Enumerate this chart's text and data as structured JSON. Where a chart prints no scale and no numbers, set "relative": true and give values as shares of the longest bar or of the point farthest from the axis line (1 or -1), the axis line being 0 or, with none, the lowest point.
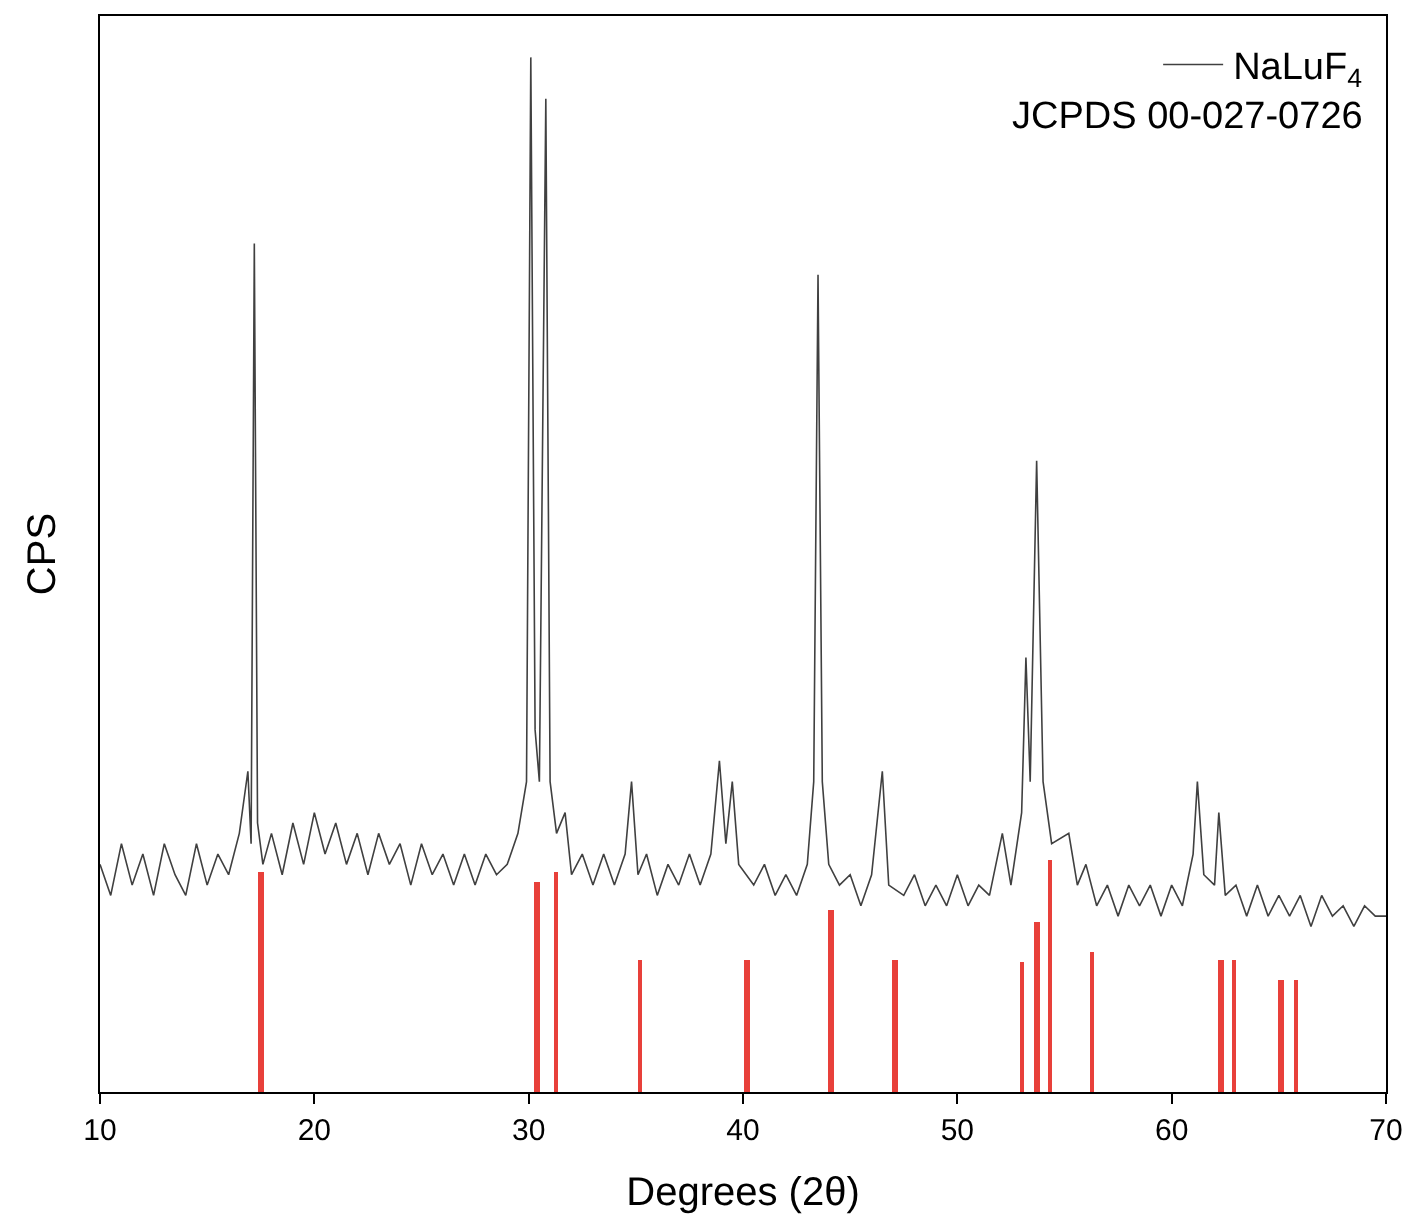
{
  "chart_data": {
    "type": "line",
    "relative": true,
    "xlabel": "Degrees (2θ)",
    "ylabel": "CPS",
    "xlim": [
      10,
      70
    ],
    "xticks": [
      10,
      20,
      30,
      40,
      50,
      60,
      70
    ],
    "legend": "top right",
    "annotations": [
      "JCPDS 00-027-0726"
    ],
    "series": [
      {
        "name": "NaLuF$_{4}$",
        "color": "#404040",
        "x": [
          10,
          10.5,
          11,
          11.5,
          12,
          12.5,
          13,
          13.5,
          14,
          14.5,
          15,
          15.5,
          16,
          16.5,
          16.9,
          17.05,
          17.2,
          17.35,
          17.6,
          18,
          18.5,
          19,
          19.5,
          20,
          20.5,
          21,
          21.5,
          22,
          22.5,
          23,
          23.5,
          24,
          24.5,
          25,
          25.5,
          26,
          26.5,
          27,
          27.5,
          28,
          28.5,
          29,
          29.5,
          29.9,
          30.1,
          30.3,
          30.5,
          30.8,
          31.0,
          31.3,
          31.7,
          32,
          32.5,
          33,
          33.5,
          34,
          34.5,
          34.8,
          35.1,
          35.5,
          36,
          36.5,
          37,
          37.5,
          38,
          38.5,
          38.9,
          39.2,
          39.5,
          39.8,
          40.5,
          41,
          41.5,
          42,
          42.5,
          43,
          43.3,
          43.5,
          43.7,
          44,
          44.5,
          45,
          45.5,
          46,
          46.5,
          46.8,
          47.5,
          48,
          48.5,
          49,
          49.5,
          50,
          50.5,
          51,
          51.5,
          52.1,
          52.5,
          53,
          53.2,
          53.4,
          53.7,
          54,
          54.4,
          55.2,
          55.6,
          56,
          56.5,
          57,
          57.5,
          58,
          58.5,
          59,
          59.5,
          60,
          60.5,
          61,
          61.2,
          61.5,
          62,
          62.2,
          62.5,
          63,
          63.5,
          64,
          64.5,
          65,
          65.5,
          66,
          66.5,
          67,
          67.5,
          68,
          68.5,
          69,
          69.5,
          70
        ],
        "values": [
          0.22,
          0.19,
          0.24,
          0.2,
          0.23,
          0.19,
          0.24,
          0.21,
          0.19,
          0.24,
          0.2,
          0.23,
          0.21,
          0.25,
          0.31,
          0.24,
          0.82,
          0.26,
          0.22,
          0.25,
          0.21,
          0.26,
          0.22,
          0.27,
          0.23,
          0.26,
          0.22,
          0.25,
          0.21,
          0.25,
          0.22,
          0.24,
          0.2,
          0.24,
          0.21,
          0.23,
          0.2,
          0.23,
          0.2,
          0.23,
          0.21,
          0.22,
          0.25,
          0.3,
          1.0,
          0.35,
          0.3,
          0.96,
          0.3,
          0.25,
          0.27,
          0.21,
          0.23,
          0.2,
          0.23,
          0.2,
          0.23,
          0.3,
          0.21,
          0.23,
          0.19,
          0.22,
          0.2,
          0.23,
          0.2,
          0.23,
          0.32,
          0.24,
          0.3,
          0.22,
          0.2,
          0.22,
          0.19,
          0.21,
          0.19,
          0.22,
          0.3,
          0.79,
          0.3,
          0.22,
          0.2,
          0.21,
          0.18,
          0.21,
          0.31,
          0.2,
          0.19,
          0.21,
          0.18,
          0.2,
          0.18,
          0.21,
          0.18,
          0.2,
          0.19,
          0.25,
          0.2,
          0.27,
          0.42,
          0.3,
          0.61,
          0.3,
          0.24,
          0.25,
          0.2,
          0.22,
          0.18,
          0.2,
          0.17,
          0.2,
          0.18,
          0.2,
          0.17,
          0.2,
          0.18,
          0.23,
          0.3,
          0.21,
          0.2,
          0.27,
          0.19,
          0.2,
          0.17,
          0.2,
          0.17,
          0.19,
          0.17,
          0.19,
          0.16,
          0.19,
          0.17,
          0.18,
          0.16,
          0.18,
          0.17,
          0.17
        ]
      },
      {
        "type": "bar",
        "color": "#e8403a",
        "x": [
          17.5,
          30.4,
          31.3,
          35.2,
          40.2,
          44.1,
          47.1,
          53.0,
          53.7,
          54.3,
          56.3,
          62.3,
          62.9,
          65.1,
          65.8
        ],
        "values": [
          0.213,
          0.203,
          0.213,
          0.128,
          0.128,
          0.175,
          0.128,
          0.126,
          0.164,
          0.224,
          0.136,
          0.128,
          0.128,
          0.109,
          0.109
        ]
      }
    ]
  }
}
